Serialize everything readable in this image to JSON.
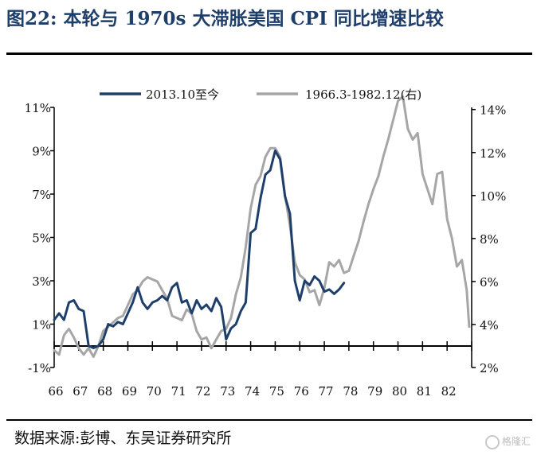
{
  "title": "图22:  本轮与 1970s 大滞胀美国 CPI 同比增速比较",
  "source": "数据来源:彭博、东吴证券研究所",
  "watermark": "格隆汇",
  "colors": {
    "series1": "#1f3f6b",
    "series2": "#a6a6a6",
    "title": "#1f3f6b",
    "axis": "#000000"
  },
  "chart_data": {
    "type": "line",
    "x_ticks": [
      "66",
      "67",
      "68",
      "69",
      "70",
      "71",
      "72",
      "73",
      "74",
      "75",
      "76",
      "77",
      "78",
      "79",
      "80",
      "81",
      "82"
    ],
    "xlim": [
      66,
      83
    ],
    "left_axis": {
      "ticks": [
        "11%",
        "9%",
        "7%",
        "5%",
        "3%",
        "1%",
        "-1%"
      ],
      "ylim": [
        -1,
        11
      ]
    },
    "right_axis": {
      "ticks": [
        "14%",
        "12%",
        "10%",
        "8%",
        "6%",
        "4%",
        "2%"
      ],
      "ylim": [
        2,
        14.1
      ]
    },
    "legend": {
      "placement": "top",
      "entries": [
        "2013.10至今",
        "1966.3-1982.12(右)"
      ]
    },
    "series": [
      {
        "name": "2013.10至今",
        "axis": "left",
        "color": "#1f3f6b",
        "x": [
          66.0,
          66.2,
          66.4,
          66.6,
          66.8,
          67.0,
          67.2,
          67.4,
          67.6,
          67.8,
          68.0,
          68.2,
          68.4,
          68.6,
          68.8,
          69.0,
          69.2,
          69.4,
          69.6,
          69.8,
          70.0,
          70.2,
          70.4,
          70.6,
          70.8,
          71.0,
          71.2,
          71.4,
          71.6,
          71.8,
          72.0,
          72.2,
          72.4,
          72.6,
          72.8,
          73.0,
          73.2,
          73.4,
          73.6,
          73.8,
          74.0,
          74.2,
          74.4,
          74.6,
          74.8,
          75.0,
          75.2,
          75.4,
          75.6,
          75.8,
          76.0,
          76.2,
          76.4,
          76.6,
          76.8,
          77.0,
          77.2,
          77.4,
          77.6,
          77.8
        ],
        "y": [
          1.2,
          1.5,
          1.2,
          2.0,
          2.1,
          1.7,
          1.6,
          0.0,
          -0.1,
          0.0,
          0.3,
          1.0,
          0.9,
          1.1,
          1.0,
          1.5,
          2.0,
          2.7,
          2.0,
          1.7,
          2.0,
          2.1,
          2.3,
          2.1,
          2.7,
          2.9,
          2.0,
          2.1,
          1.5,
          2.1,
          1.7,
          1.9,
          1.6,
          2.2,
          1.8,
          0.3,
          0.8,
          1.0,
          1.6,
          2.0,
          5.2,
          5.4,
          6.8,
          7.9,
          8.1,
          9.0,
          8.6,
          6.9,
          6.1,
          3.0,
          2.1,
          3.0,
          2.8,
          3.2,
          3.0,
          2.5,
          2.6,
          2.4,
          2.6,
          2.9
        ]
      },
      {
        "name": "1966.3-1982.12(右)",
        "axis": "right",
        "color": "#a6a6a6",
        "x": [
          66.0,
          66.2,
          66.4,
          66.6,
          66.8,
          67.0,
          67.2,
          67.4,
          67.6,
          67.8,
          68.0,
          68.2,
          68.4,
          68.6,
          68.8,
          69.0,
          69.2,
          69.4,
          69.6,
          69.8,
          70.0,
          70.2,
          70.4,
          70.6,
          70.8,
          71.0,
          71.2,
          71.4,
          71.6,
          71.8,
          72.0,
          72.2,
          72.4,
          72.6,
          72.8,
          73.0,
          73.2,
          73.4,
          73.6,
          73.8,
          74.0,
          74.2,
          74.4,
          74.6,
          74.8,
          75.0,
          75.2,
          75.4,
          75.6,
          75.8,
          76.0,
          76.2,
          76.4,
          76.6,
          76.8,
          77.0,
          77.2,
          77.4,
          77.6,
          77.8,
          78.0,
          78.2,
          78.4,
          78.6,
          78.8,
          79.0,
          79.2,
          79.4,
          79.6,
          79.8,
          80.0,
          80.2,
          80.4,
          80.6,
          80.8,
          81.0,
          81.2,
          81.4,
          81.6,
          81.8,
          82.0,
          82.2,
          82.4,
          82.6,
          82.8,
          82.9
        ],
        "y": [
          2.8,
          2.6,
          3.5,
          3.8,
          3.4,
          2.9,
          2.6,
          2.9,
          2.5,
          3.0,
          3.7,
          3.9,
          4.1,
          4.3,
          4.4,
          4.9,
          5.4,
          5.6,
          6.0,
          6.2,
          6.1,
          6.0,
          5.6,
          5.2,
          4.4,
          4.3,
          4.2,
          4.7,
          4.5,
          3.7,
          3.3,
          3.4,
          2.9,
          3.3,
          3.7,
          3.8,
          4.3,
          5.4,
          6.2,
          7.6,
          9.4,
          10.5,
          10.9,
          11.8,
          12.2,
          12.2,
          11.8,
          10.0,
          8.6,
          6.9,
          6.3,
          6.1,
          5.5,
          5.6,
          4.9,
          5.7,
          6.9,
          6.7,
          7.0,
          6.4,
          6.5,
          7.2,
          7.9,
          8.8,
          9.6,
          10.3,
          10.9,
          11.8,
          12.6,
          13.5,
          14.4,
          14.6,
          13.1,
          12.6,
          12.9,
          11.0,
          10.3,
          9.6,
          11.0,
          11.1,
          8.9,
          8.0,
          6.7,
          7.0,
          5.6,
          3.9
        ]
      }
    ]
  }
}
